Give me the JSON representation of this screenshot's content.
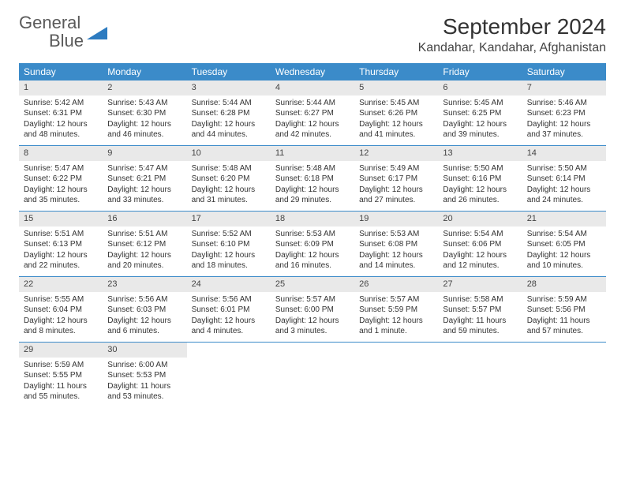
{
  "brand": {
    "word1": "General",
    "word2": "Blue"
  },
  "title": "September 2024",
  "location": "Kandahar, Kandahar, Afghanistan",
  "colors": {
    "header_bg": "#3b8bc9",
    "header_text": "#ffffff",
    "daynum_bg": "#e9e9e9",
    "row_border": "#3b8bc9",
    "brand_gray": "#5a5a5a",
    "brand_blue": "#2d7bc0"
  },
  "dayNames": [
    "Sunday",
    "Monday",
    "Tuesday",
    "Wednesday",
    "Thursday",
    "Friday",
    "Saturday"
  ],
  "weeks": [
    [
      {
        "n": "1",
        "sunrise": "5:42 AM",
        "sunset": "6:31 PM",
        "dl1": "Daylight: 12 hours",
        "dl2": "and 48 minutes."
      },
      {
        "n": "2",
        "sunrise": "5:43 AM",
        "sunset": "6:30 PM",
        "dl1": "Daylight: 12 hours",
        "dl2": "and 46 minutes."
      },
      {
        "n": "3",
        "sunrise": "5:44 AM",
        "sunset": "6:28 PM",
        "dl1": "Daylight: 12 hours",
        "dl2": "and 44 minutes."
      },
      {
        "n": "4",
        "sunrise": "5:44 AM",
        "sunset": "6:27 PM",
        "dl1": "Daylight: 12 hours",
        "dl2": "and 42 minutes."
      },
      {
        "n": "5",
        "sunrise": "5:45 AM",
        "sunset": "6:26 PM",
        "dl1": "Daylight: 12 hours",
        "dl2": "and 41 minutes."
      },
      {
        "n": "6",
        "sunrise": "5:45 AM",
        "sunset": "6:25 PM",
        "dl1": "Daylight: 12 hours",
        "dl2": "and 39 minutes."
      },
      {
        "n": "7",
        "sunrise": "5:46 AM",
        "sunset": "6:23 PM",
        "dl1": "Daylight: 12 hours",
        "dl2": "and 37 minutes."
      }
    ],
    [
      {
        "n": "8",
        "sunrise": "5:47 AM",
        "sunset": "6:22 PM",
        "dl1": "Daylight: 12 hours",
        "dl2": "and 35 minutes."
      },
      {
        "n": "9",
        "sunrise": "5:47 AM",
        "sunset": "6:21 PM",
        "dl1": "Daylight: 12 hours",
        "dl2": "and 33 minutes."
      },
      {
        "n": "10",
        "sunrise": "5:48 AM",
        "sunset": "6:20 PM",
        "dl1": "Daylight: 12 hours",
        "dl2": "and 31 minutes."
      },
      {
        "n": "11",
        "sunrise": "5:48 AM",
        "sunset": "6:18 PM",
        "dl1": "Daylight: 12 hours",
        "dl2": "and 29 minutes."
      },
      {
        "n": "12",
        "sunrise": "5:49 AM",
        "sunset": "6:17 PM",
        "dl1": "Daylight: 12 hours",
        "dl2": "and 27 minutes."
      },
      {
        "n": "13",
        "sunrise": "5:50 AM",
        "sunset": "6:16 PM",
        "dl1": "Daylight: 12 hours",
        "dl2": "and 26 minutes."
      },
      {
        "n": "14",
        "sunrise": "5:50 AM",
        "sunset": "6:14 PM",
        "dl1": "Daylight: 12 hours",
        "dl2": "and 24 minutes."
      }
    ],
    [
      {
        "n": "15",
        "sunrise": "5:51 AM",
        "sunset": "6:13 PM",
        "dl1": "Daylight: 12 hours",
        "dl2": "and 22 minutes."
      },
      {
        "n": "16",
        "sunrise": "5:51 AM",
        "sunset": "6:12 PM",
        "dl1": "Daylight: 12 hours",
        "dl2": "and 20 minutes."
      },
      {
        "n": "17",
        "sunrise": "5:52 AM",
        "sunset": "6:10 PM",
        "dl1": "Daylight: 12 hours",
        "dl2": "and 18 minutes."
      },
      {
        "n": "18",
        "sunrise": "5:53 AM",
        "sunset": "6:09 PM",
        "dl1": "Daylight: 12 hours",
        "dl2": "and 16 minutes."
      },
      {
        "n": "19",
        "sunrise": "5:53 AM",
        "sunset": "6:08 PM",
        "dl1": "Daylight: 12 hours",
        "dl2": "and 14 minutes."
      },
      {
        "n": "20",
        "sunrise": "5:54 AM",
        "sunset": "6:06 PM",
        "dl1": "Daylight: 12 hours",
        "dl2": "and 12 minutes."
      },
      {
        "n": "21",
        "sunrise": "5:54 AM",
        "sunset": "6:05 PM",
        "dl1": "Daylight: 12 hours",
        "dl2": "and 10 minutes."
      }
    ],
    [
      {
        "n": "22",
        "sunrise": "5:55 AM",
        "sunset": "6:04 PM",
        "dl1": "Daylight: 12 hours",
        "dl2": "and 8 minutes."
      },
      {
        "n": "23",
        "sunrise": "5:56 AM",
        "sunset": "6:03 PM",
        "dl1": "Daylight: 12 hours",
        "dl2": "and 6 minutes."
      },
      {
        "n": "24",
        "sunrise": "5:56 AM",
        "sunset": "6:01 PM",
        "dl1": "Daylight: 12 hours",
        "dl2": "and 4 minutes."
      },
      {
        "n": "25",
        "sunrise": "5:57 AM",
        "sunset": "6:00 PM",
        "dl1": "Daylight: 12 hours",
        "dl2": "and 3 minutes."
      },
      {
        "n": "26",
        "sunrise": "5:57 AM",
        "sunset": "5:59 PM",
        "dl1": "Daylight: 12 hours",
        "dl2": "and 1 minute."
      },
      {
        "n": "27",
        "sunrise": "5:58 AM",
        "sunset": "5:57 PM",
        "dl1": "Daylight: 11 hours",
        "dl2": "and 59 minutes."
      },
      {
        "n": "28",
        "sunrise": "5:59 AM",
        "sunset": "5:56 PM",
        "dl1": "Daylight: 11 hours",
        "dl2": "and 57 minutes."
      }
    ],
    [
      {
        "n": "29",
        "sunrise": "5:59 AM",
        "sunset": "5:55 PM",
        "dl1": "Daylight: 11 hours",
        "dl2": "and 55 minutes."
      },
      {
        "n": "30",
        "sunrise": "6:00 AM",
        "sunset": "5:53 PM",
        "dl1": "Daylight: 11 hours",
        "dl2": "and 53 minutes."
      },
      null,
      null,
      null,
      null,
      null
    ]
  ],
  "labels": {
    "sunrise": "Sunrise:",
    "sunset": "Sunset:"
  }
}
